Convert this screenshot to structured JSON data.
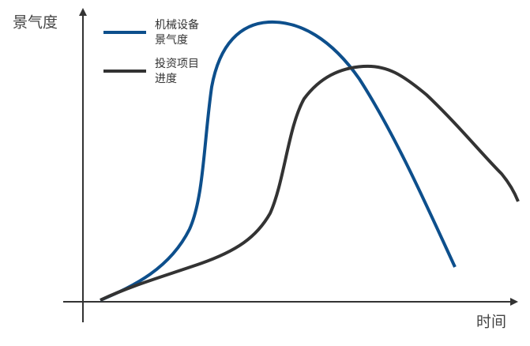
{
  "axes": {
    "y_label": "景气度",
    "x_label": "时间"
  },
  "legend": [
    {
      "lines": [
        "机械设备",
        "景气度"
      ]
    },
    {
      "lines": [
        "投资项目",
        "进度"
      ]
    }
  ]
}
